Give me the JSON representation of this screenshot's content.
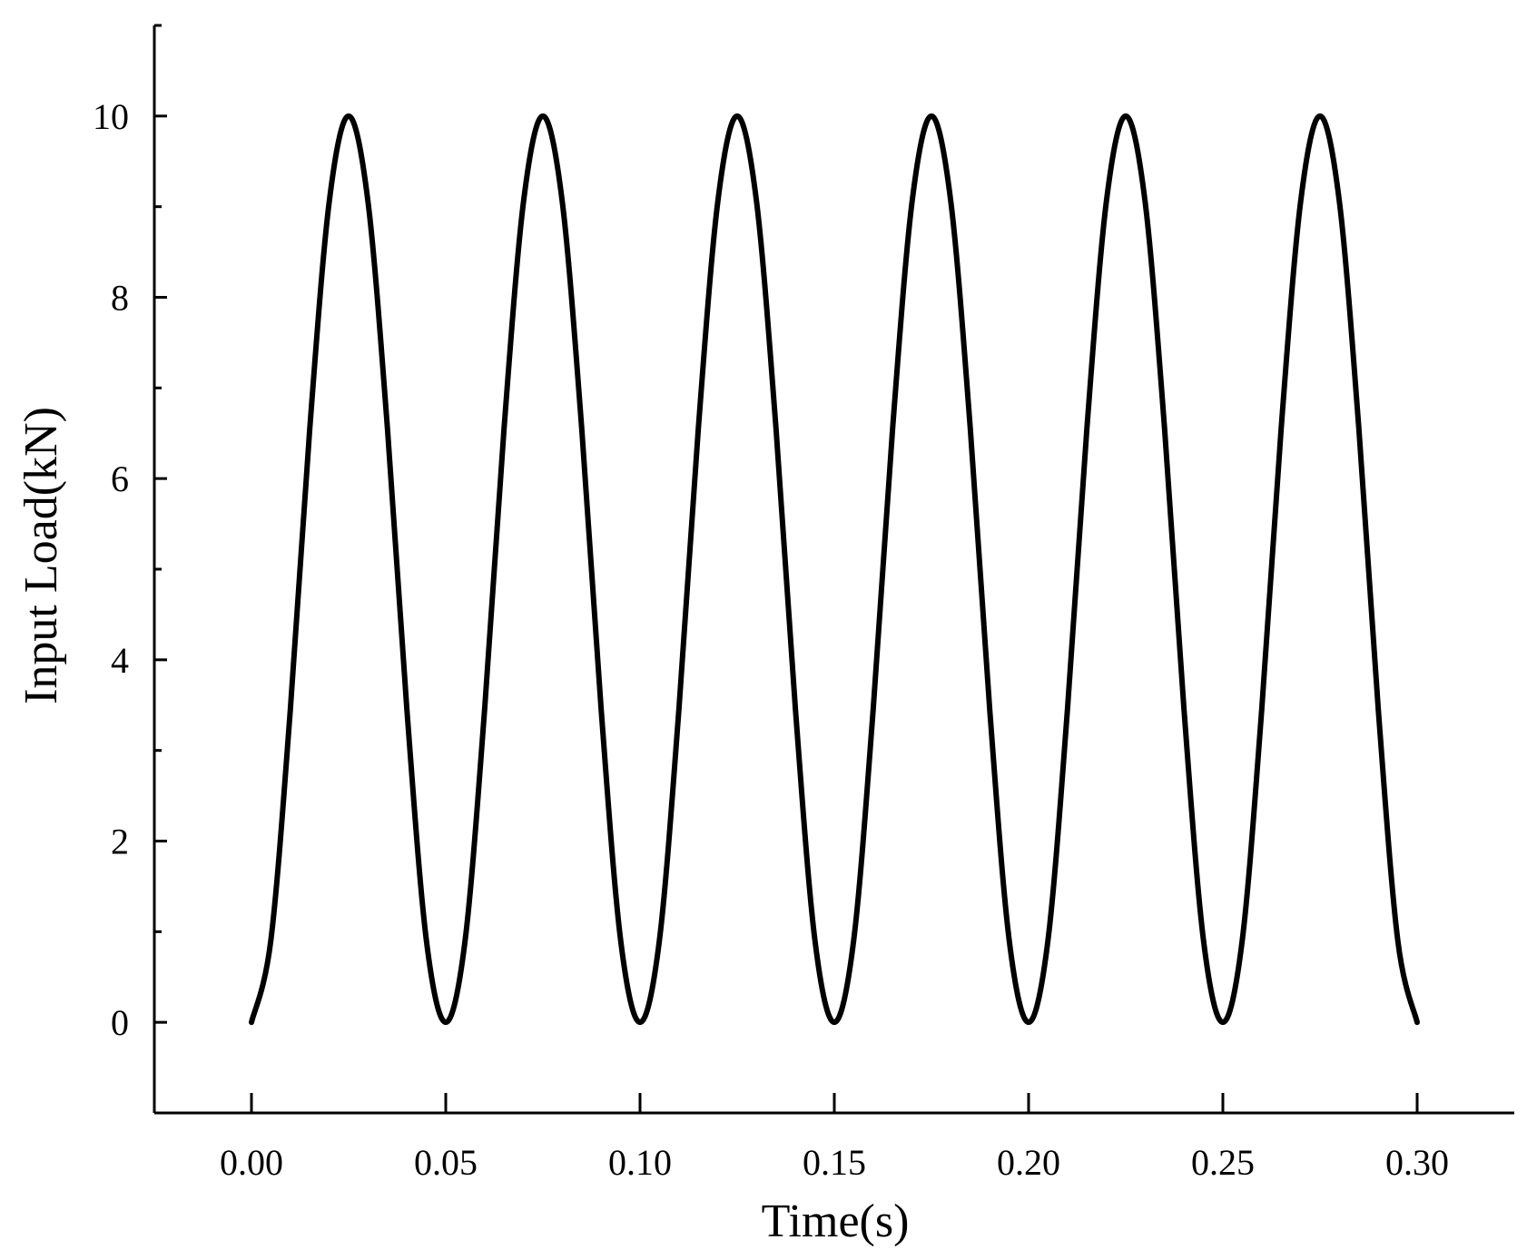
{
  "chart_data": {
    "type": "line",
    "xlabel": "Time(s)",
    "ylabel": "Input Load(kN)",
    "xlim": [
      -0.025,
      0.325
    ],
    "ylim": [
      -1,
      11
    ],
    "x_ticks": [
      0.0,
      0.05,
      0.1,
      0.15,
      0.2,
      0.25,
      0.3
    ],
    "x_tick_labels": [
      "0.00",
      "0.05",
      "0.10",
      "0.15",
      "0.20",
      "0.25",
      "0.30"
    ],
    "y_ticks": [
      0,
      2,
      4,
      6,
      8,
      10
    ],
    "y_tick_labels": [
      "0",
      "2",
      "4",
      "6",
      "8",
      "10"
    ],
    "y_minor_ticks": [
      -1,
      1,
      3,
      5,
      7,
      9,
      11
    ],
    "grid": false,
    "series": [
      {
        "color": "#000000",
        "x": [
          0.0,
          0.005,
          0.01,
          0.015,
          0.02,
          0.025,
          0.03,
          0.035,
          0.04,
          0.045,
          0.05,
          0.055,
          0.06,
          0.065,
          0.07,
          0.075,
          0.08,
          0.085,
          0.09,
          0.095,
          0.1,
          0.105,
          0.11,
          0.115,
          0.12,
          0.125,
          0.13,
          0.135,
          0.14,
          0.145,
          0.15,
          0.155,
          0.16,
          0.165,
          0.17,
          0.175,
          0.18,
          0.185,
          0.19,
          0.195,
          0.2,
          0.205,
          0.21,
          0.215,
          0.22,
          0.225,
          0.23,
          0.235,
          0.24,
          0.245,
          0.25,
          0.255,
          0.26,
          0.265,
          0.27,
          0.275,
          0.28,
          0.285,
          0.29,
          0.295,
          0.3
        ],
        "y": [
          0.0,
          0.91,
          3.45,
          6.55,
          9.05,
          10.0,
          9.05,
          6.55,
          3.45,
          0.91,
          0.0,
          0.91,
          3.45,
          6.55,
          9.05,
          10.0,
          9.05,
          6.55,
          3.45,
          0.91,
          0.0,
          0.91,
          3.45,
          6.55,
          9.05,
          10.0,
          9.05,
          6.55,
          3.45,
          0.91,
          0.0,
          0.91,
          3.45,
          6.55,
          9.05,
          10.0,
          9.05,
          6.55,
          3.45,
          0.91,
          0.0,
          0.91,
          3.45,
          6.55,
          9.05,
          10.0,
          9.05,
          6.55,
          3.45,
          0.91,
          0.0,
          0.91,
          3.45,
          6.55,
          9.05,
          10.0,
          9.05,
          6.55,
          3.45,
          0.91,
          0.0
        ]
      }
    ]
  }
}
